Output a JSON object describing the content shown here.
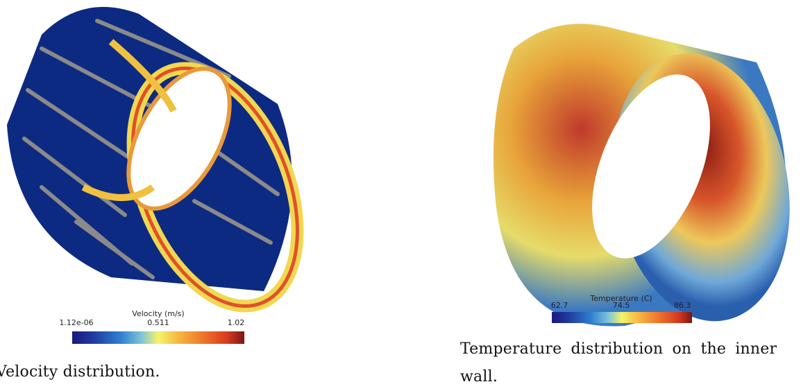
{
  "figures": [
    {
      "colorbar": {
        "title": "Velocity (m/s)",
        "labels": [
          "1.12e-06",
          "0.511",
          "1.02"
        ]
      },
      "caption": "Velocity distribution."
    },
    {
      "colorbar": {
        "title": "Temperature (C)",
        "labels": [
          "62.7",
          "74.5",
          "86.3"
        ]
      },
      "caption": "Temperature distribution on the inner wall."
    }
  ]
}
